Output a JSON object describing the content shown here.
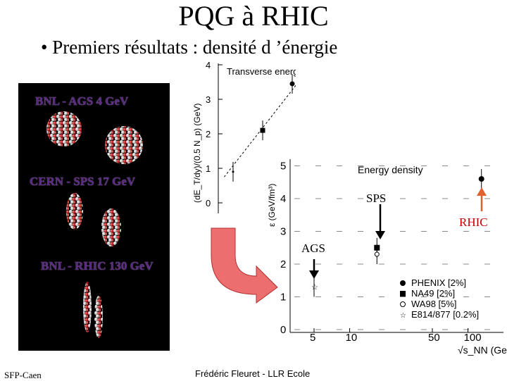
{
  "title": "PQG à RHIC",
  "subtitle": "• Premiers résultats : densité d ’énergie",
  "panel": {
    "labels": [
      "BNL - AGS   4 GeV",
      "CERN - SPS   17 GeV",
      "BNL - RHIC   130 GeV"
    ]
  },
  "annotations": {
    "sps": "SPS",
    "rhic": "RHIC",
    "ags": "AGS"
  },
  "footer": {
    "left": "SFP-Caen",
    "center": "Frédéric Fleuret - LLR Ecole"
  },
  "colors": {
    "rhic_arrow": "#e06030",
    "rhic_label": "#c00000",
    "big_arrow": "#ec6e6e",
    "panel_bg": "#000000"
  },
  "chart_data": [
    {
      "type": "scatter",
      "title": "Transverse energy density per participant",
      "ylabel": "(dE_T/dy)/(0.5 N_p) (GeV)",
      "y_ticks": [
        "0",
        "1",
        "2",
        "3",
        "4"
      ],
      "ylim": [
        0,
        4.2
      ],
      "points": [
        {
          "x": 1,
          "y": 0.9
        },
        {
          "x": 2,
          "y": 2.1
        },
        {
          "x": 3,
          "y": 3.45
        }
      ],
      "fit": "dashed line"
    },
    {
      "type": "scatter",
      "title": "Energy density",
      "ylabel": "ε (GeV/fm³)",
      "xlabel": "√s_NN (GeV)",
      "y_ticks": [
        "0",
        "1",
        "2",
        "3",
        "4",
        "5"
      ],
      "x_ticks": [
        "5",
        "10",
        "50",
        "100"
      ],
      "ylim": [
        0,
        5
      ],
      "xscale": "log",
      "series": [
        {
          "name": "PHENIX [2%]",
          "marker": "filled-circle",
          "x": 130,
          "y": 4.6
        },
        {
          "name": "NA49 [2%]",
          "marker": "filled-square",
          "x": 17,
          "y": 2.5
        },
        {
          "name": "WA98 [5%]",
          "marker": "open-circle",
          "x": 17,
          "y": 2.3
        },
        {
          "name": "E814/877 [0.2%]",
          "marker": "open-star",
          "x": 5,
          "y": 1.3
        }
      ]
    }
  ]
}
